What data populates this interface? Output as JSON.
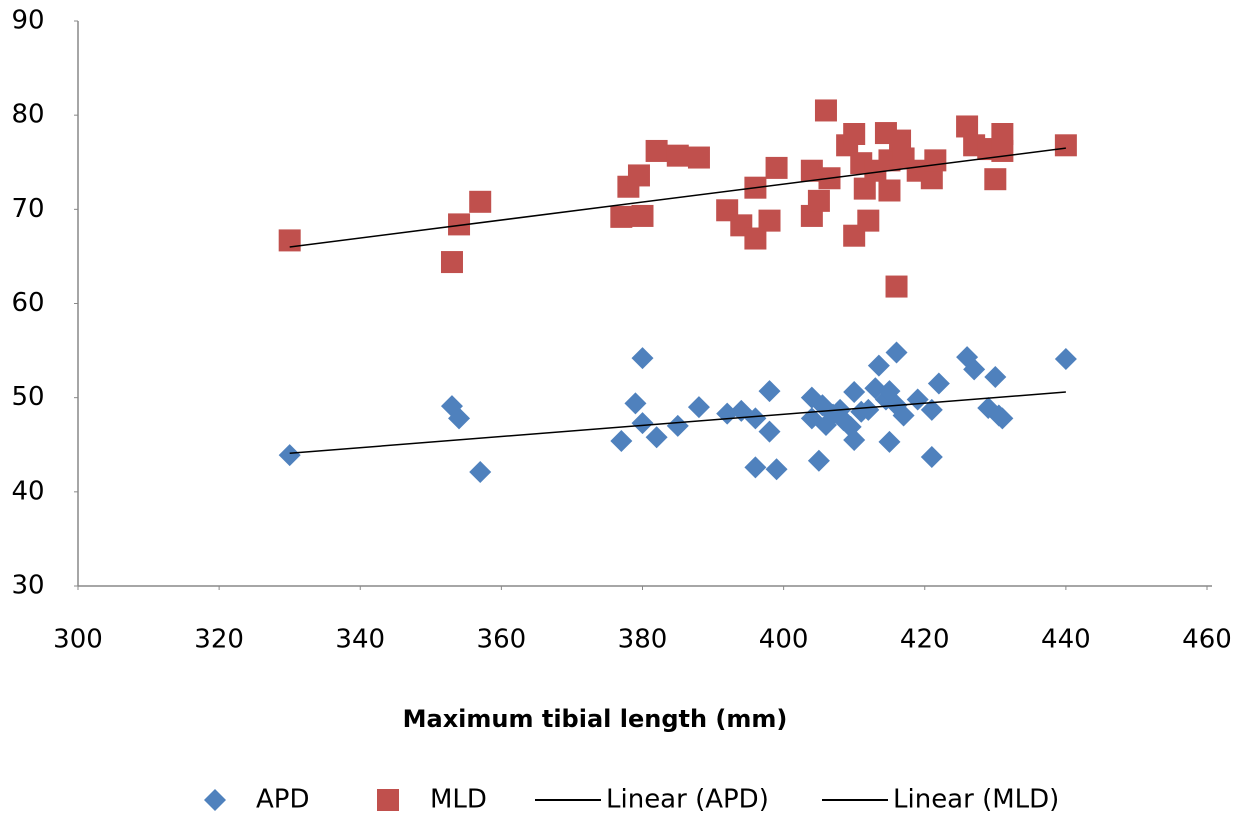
{
  "chart_data": {
    "type": "scatter",
    "x_label": "Maximum tibial length (mm)",
    "xlim": [
      300,
      460
    ],
    "xticks": [
      300,
      320,
      340,
      360,
      380,
      400,
      420,
      440,
      460
    ],
    "ylim": [
      30,
      90
    ],
    "yticks": [
      30,
      40,
      50,
      60,
      70,
      80,
      90
    ],
    "series": [
      {
        "name": "APD",
        "color": "#4f81bd",
        "marker": "diamond",
        "x": [
          330,
          353,
          354,
          357,
          377,
          379,
          380,
          380,
          382,
          385,
          388,
          392,
          394,
          396,
          396,
          398,
          398,
          399,
          404,
          404,
          405,
          405.5,
          406,
          407,
          408,
          408.5,
          409.5,
          410,
          410,
          411,
          412,
          413,
          413.5,
          414.5,
          415,
          415,
          416,
          416,
          417,
          419,
          421,
          421,
          422,
          426,
          427,
          429,
          430,
          430.5,
          431,
          440
        ],
        "values": [
          43.9,
          49.1,
          47.8,
          42.1,
          45.4,
          49.4,
          54.2,
          47.3,
          45.8,
          47.0,
          49.0,
          48.3,
          48.6,
          47.8,
          42.6,
          50.7,
          46.4,
          42.4,
          50.0,
          47.8,
          43.3,
          49.2,
          47.1,
          48.2,
          48.7,
          47.6,
          46.9,
          45.5,
          50.6,
          48.5,
          48.7,
          51.0,
          53.4,
          49.8,
          45.3,
          50.7,
          54.8,
          49.2,
          48.1,
          49.8,
          48.7,
          43.7,
          51.5,
          54.3,
          53.0,
          48.9,
          52.2,
          48.1,
          47.8,
          54.1
        ]
      },
      {
        "name": "MLD",
        "color": "#c0504d",
        "marker": "square",
        "x": [
          330,
          353,
          354,
          357,
          377,
          378,
          379.5,
          380,
          382,
          385,
          388,
          392,
          394,
          396,
          396,
          398,
          399,
          404,
          404,
          405,
          406,
          406.5,
          409,
          410,
          410,
          411,
          411.5,
          412,
          413,
          414.5,
          415,
          415,
          416,
          416.5,
          417,
          419,
          421,
          421.5,
          426,
          427,
          429,
          430,
          431,
          431,
          440
        ],
        "values": [
          66.7,
          64.4,
          68.4,
          70.8,
          69.2,
          72.4,
          73.6,
          69.3,
          76.2,
          75.7,
          75.5,
          69.9,
          68.3,
          72.3,
          66.9,
          68.8,
          74.4,
          74.1,
          69.3,
          70.9,
          80.5,
          73.3,
          76.8,
          78.0,
          67.2,
          74.9,
          72.2,
          68.8,
          74.1,
          78.1,
          72.0,
          75.2,
          61.8,
          77.3,
          75.4,
          74.1,
          73.3,
          75.2,
          78.8,
          76.8,
          76.4,
          73.2,
          76.2,
          78.0,
          76.8
        ]
      },
      {
        "name": "Linear (APD)",
        "color": "#000000",
        "marker": "line",
        "x": [
          330,
          440
        ],
        "values": [
          44.1,
          50.6
        ]
      },
      {
        "name": "Linear (MLD)",
        "color": "#000000",
        "marker": "line",
        "x": [
          330,
          440
        ],
        "values": [
          66.0,
          76.5
        ]
      }
    ]
  }
}
